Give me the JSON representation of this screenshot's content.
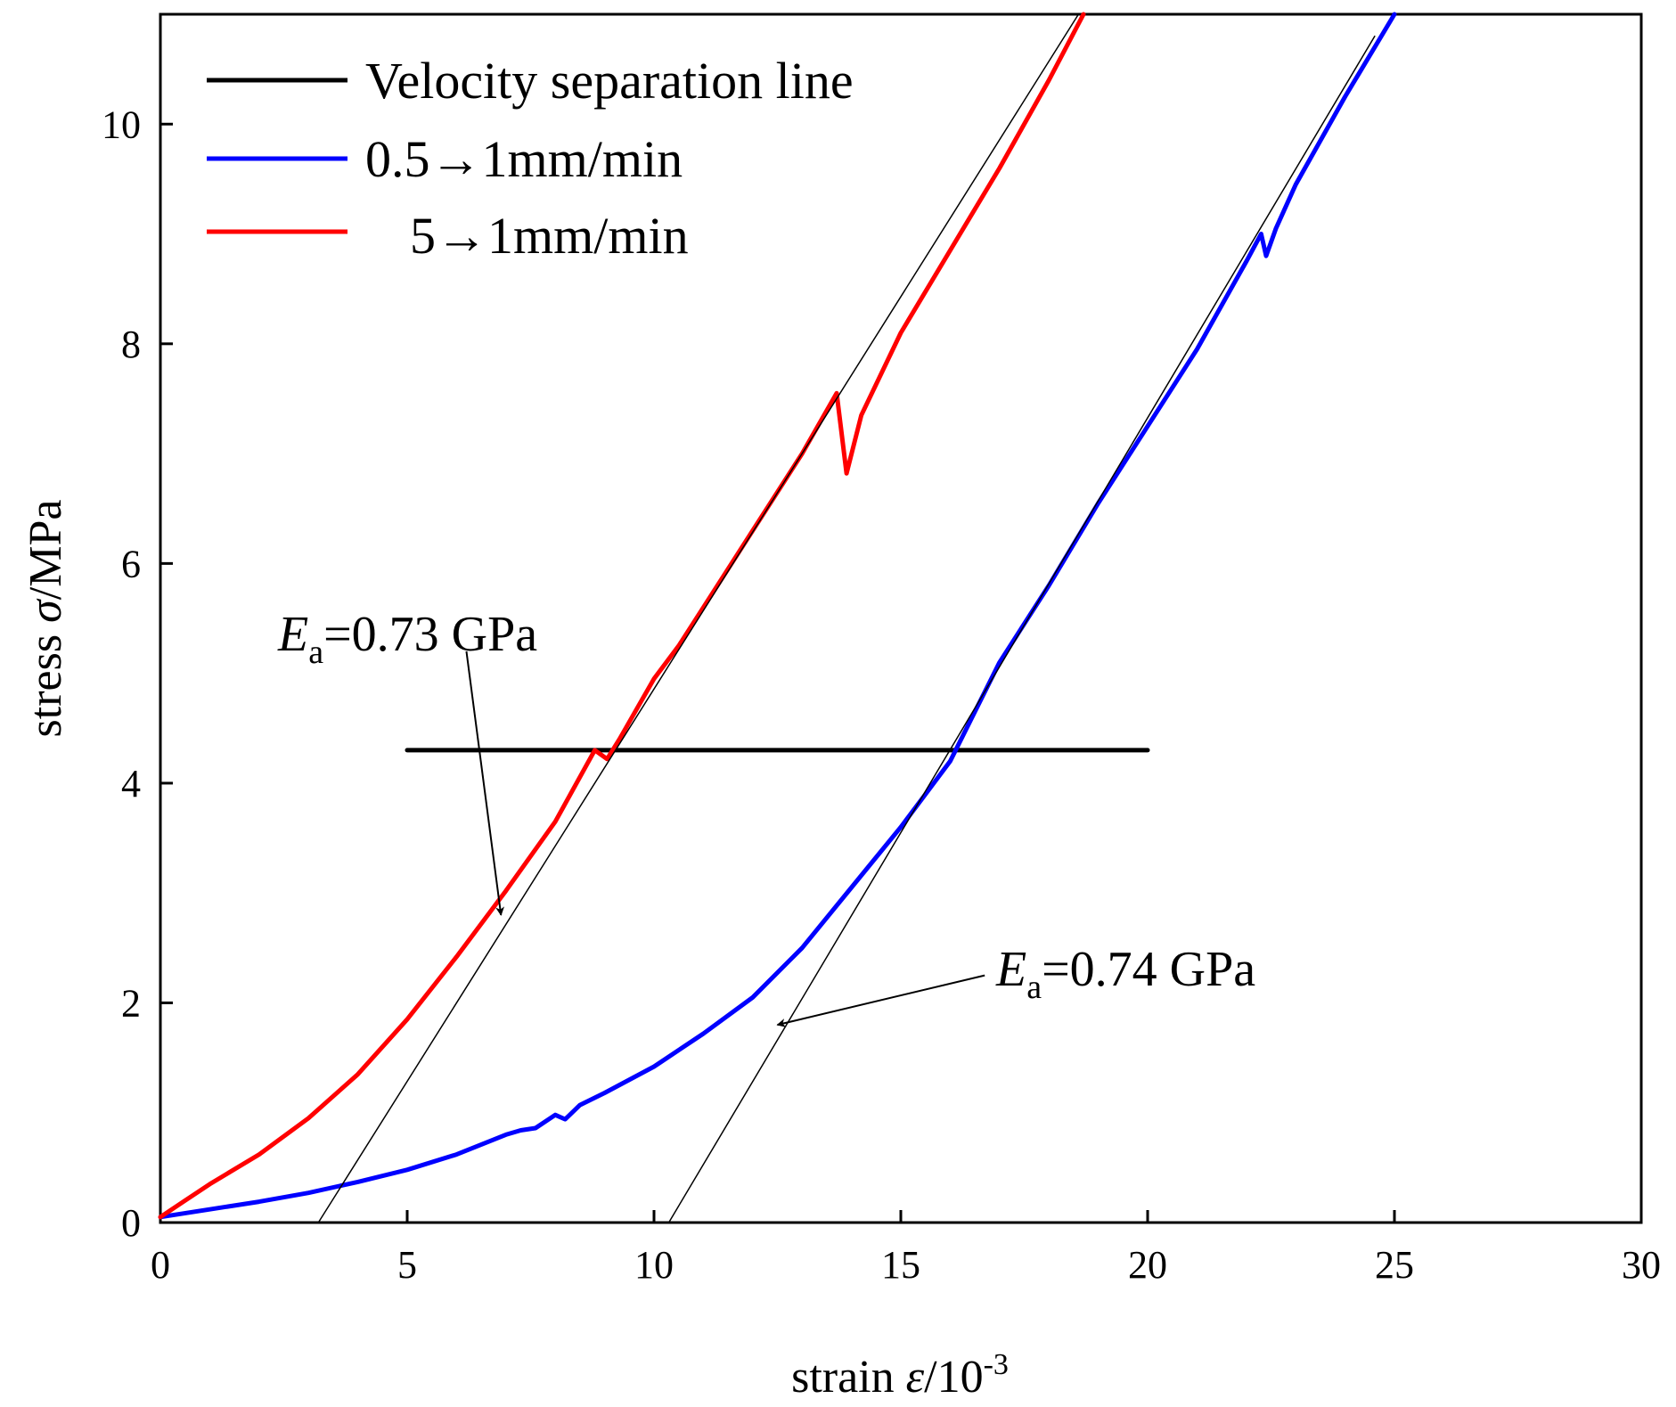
{
  "chart_data": {
    "type": "line",
    "title": "",
    "xlabel": {
      "prefix": "strain ",
      "symbol": "ε",
      "unit": "/10",
      "exponent": "-3"
    },
    "ylabel": {
      "prefix": "stress ",
      "symbol": "σ",
      "unit": "/MPa"
    },
    "xlim": [
      0,
      30
    ],
    "ylim": [
      0,
      11
    ],
    "xticks": [
      0,
      5,
      10,
      15,
      20,
      25,
      30
    ],
    "yticks": [
      0,
      2,
      4,
      6,
      8,
      10
    ],
    "xtick_labels": [
      "0",
      "5",
      "10",
      "15",
      "20",
      "25",
      "30"
    ],
    "ytick_labels": [
      "0",
      "2",
      "4",
      "6",
      "8",
      "10"
    ],
    "legend_position": "top-left",
    "grid": false,
    "series": [
      {
        "name": "Velocity separation line",
        "legend_label": "Velocity separation line",
        "color": "#000000",
        "points": [
          [
            5.0,
            4.3
          ],
          [
            20.0,
            4.3
          ]
        ]
      },
      {
        "name": "0.5→1mm/min",
        "legend_label": "0.5→1mm/min",
        "color": "#0000ff",
        "points": [
          [
            0,
            0.05
          ],
          [
            1,
            0.12
          ],
          [
            2,
            0.19
          ],
          [
            3,
            0.27
          ],
          [
            4,
            0.37
          ],
          [
            5,
            0.48
          ],
          [
            6,
            0.62
          ],
          [
            7,
            0.8
          ],
          [
            7.3,
            0.84
          ],
          [
            7.6,
            0.86
          ],
          [
            8.0,
            0.98
          ],
          [
            8.2,
            0.94
          ],
          [
            8.5,
            1.07
          ],
          [
            9,
            1.18
          ],
          [
            10,
            1.42
          ],
          [
            11,
            1.72
          ],
          [
            12,
            2.05
          ],
          [
            13,
            2.5
          ],
          [
            14,
            3.05
          ],
          [
            15,
            3.6
          ],
          [
            16,
            4.2
          ],
          [
            16.5,
            4.65
          ],
          [
            17,
            5.1
          ],
          [
            18,
            5.8
          ],
          [
            19,
            6.55
          ],
          [
            20,
            7.25
          ],
          [
            21,
            7.95
          ],
          [
            22,
            8.75
          ],
          [
            22.3,
            9.0
          ],
          [
            22.4,
            8.8
          ],
          [
            22.6,
            9.05
          ],
          [
            23,
            9.45
          ],
          [
            24,
            10.25
          ],
          [
            25,
            11.0
          ]
        ]
      },
      {
        "name": "5→1mm/min",
        "legend_label": "5→1mm/min",
        "color": "#ff0000",
        "points": [
          [
            0,
            0.05
          ],
          [
            0.5,
            0.2
          ],
          [
            1,
            0.35
          ],
          [
            2,
            0.62
          ],
          [
            3,
            0.95
          ],
          [
            4,
            1.35
          ],
          [
            5,
            1.85
          ],
          [
            6,
            2.42
          ],
          [
            7,
            3.02
          ],
          [
            8,
            3.65
          ],
          [
            8.8,
            4.3
          ],
          [
            9.05,
            4.22
          ],
          [
            9.3,
            4.4
          ],
          [
            10,
            4.95
          ],
          [
            10.5,
            5.25
          ],
          [
            11,
            5.6
          ],
          [
            12,
            6.3
          ],
          [
            13,
            7.0
          ],
          [
            13.7,
            7.55
          ],
          [
            13.9,
            6.82
          ],
          [
            14.2,
            7.35
          ],
          [
            15,
            8.1
          ],
          [
            16,
            8.85
          ],
          [
            17,
            9.6
          ],
          [
            18,
            10.4
          ],
          [
            18.7,
            11.0
          ]
        ]
      },
      {
        "name": "tangent Ea=0.73 GPa",
        "color": "#000000",
        "points": [
          [
            3.2,
            0
          ],
          [
            18.6,
            11.0
          ]
        ]
      },
      {
        "name": "tangent Ea=0.74 GPa",
        "color": "#000000",
        "points": [
          [
            10.3,
            0
          ],
          [
            24.6,
            10.8
          ]
        ]
      }
    ],
    "annotations": [
      {
        "symbol": "E",
        "subscript": "a",
        "text": "=0.73 GPa",
        "arrow_from": [
          6.2,
          5.2
        ],
        "arrow_to": [
          6.9,
          2.8
        ]
      },
      {
        "symbol": "E",
        "subscript": "a",
        "text": "=0.74 GPa",
        "arrow_from": [
          16.7,
          2.25
        ],
        "arrow_to": [
          12.5,
          1.8
        ]
      }
    ]
  }
}
